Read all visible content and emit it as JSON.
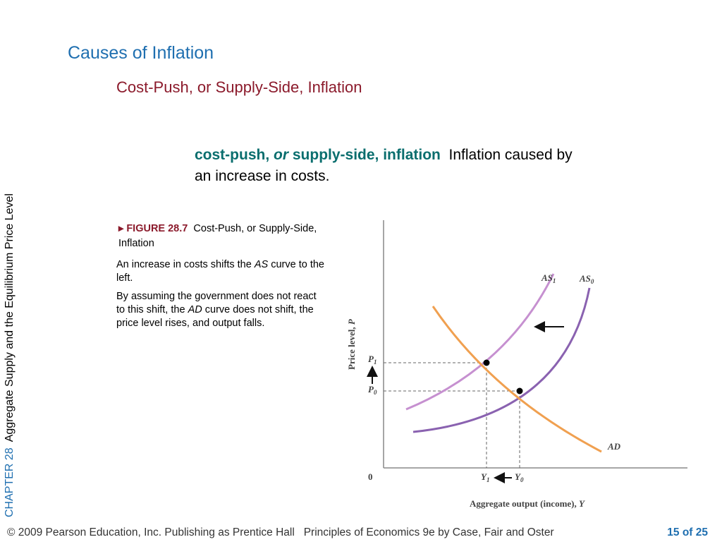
{
  "header": {
    "title": "Causes of Inflation",
    "subtitle": "Cost-Push, or Supply-Side, Inflation"
  },
  "sidebar": {
    "chapter": "CHAPTER 28",
    "chapter_title": "Aggregate Supply and the Equilibrium Price Level"
  },
  "definition": {
    "term": [
      "cost-push,",
      "or",
      "supply-side, inflation"
    ],
    "text": "Inflation caused by an increase in costs."
  },
  "figure": {
    "number": "FIGURE 28.7",
    "caption": "Cost-Push, or Supply-Side, Inflation",
    "para1": [
      "An increase in costs shifts the",
      "AS",
      "curve to the left."
    ],
    "para2": [
      "By assuming the government does not react to this shift, the",
      "AD",
      "curve does not shift, the price level rises, and output falls."
    ],
    "labels": {
      "as1": [
        "AS",
        "1"
      ],
      "as0": [
        "AS",
        "0"
      ],
      "ad": "AD",
      "p1": [
        "P",
        "1"
      ],
      "p0": [
        "P",
        "0"
      ],
      "y1": [
        "Y",
        "1"
      ],
      "y0": [
        "Y",
        "0"
      ],
      "origin": "0"
    },
    "y_axis": [
      "Price level,",
      "P"
    ],
    "x_axis": [
      "Aggregate output (income),",
      "Y"
    ]
  },
  "footer": {
    "copyright": "© 2009 Pearson Education, Inc. Publishing as Prentice Hall",
    "book": "Principles of Economics 9e by Case, Fair and Oster",
    "page": "15 of 25"
  }
}
